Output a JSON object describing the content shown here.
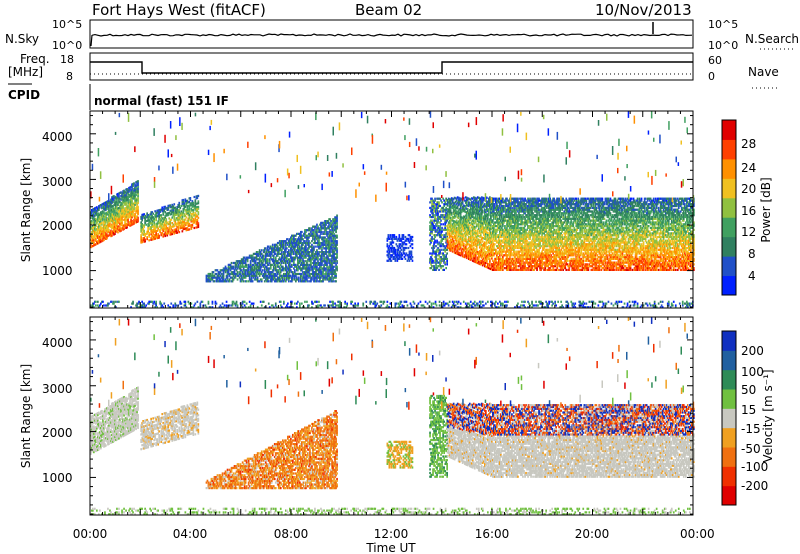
{
  "header": {
    "title": "Fort Hays West (fitACF)",
    "beam": "Beam 02",
    "date": "10/Nov/2013"
  },
  "params": {
    "nsky_label": "N.Sky",
    "nsearch_label": "N.Search",
    "nsky_ticks": [
      "10^5",
      "10^0"
    ],
    "nsearch_ticks": [
      "10^5",
      "10^0"
    ],
    "freq_label": "Freq.",
    "freq_unit": "[MHz]",
    "freq_ticks": [
      "18",
      "8"
    ],
    "nave_label": "Nave",
    "nave_ticks": [
      "60",
      "0"
    ],
    "cpid_label": "CPID",
    "cpid_text": "normal (fast) 151 IF"
  },
  "chart_data": [
    {
      "type": "heatmap",
      "name": "power",
      "ylabel": "Slant Range [km]",
      "yticks": [
        "4000",
        "3000",
        "2000",
        "1000"
      ],
      "ylim": [
        180,
        4500
      ],
      "colorbar_label": "Power [dB]",
      "colorbar_ticks": [
        "28",
        "24",
        "20",
        "16",
        "12",
        "8",
        "4"
      ],
      "colors": [
        "#0020ff",
        "#2050c8",
        "#308060",
        "#40a060",
        "#90c040",
        "#f0c020",
        "#ff9000",
        "#ff4000",
        "#e00000"
      ]
    },
    {
      "type": "heatmap",
      "name": "velocity",
      "ylabel": "Slant Range [km]",
      "yticks": [
        "4000",
        "3000",
        "2000",
        "1000"
      ],
      "ylim": [
        180,
        4500
      ],
      "colorbar_label": "Velocity [m s⁻¹]",
      "colorbar_ticks": [
        "200",
        "100",
        "50",
        "15",
        "-15",
        "-50",
        "-100",
        "-200"
      ],
      "colors": [
        "#1030c0",
        "#2060a0",
        "#2e8b57",
        "#70c040",
        "#c8c8c0",
        "#f0a020",
        "#f07010",
        "#f03000",
        "#e00000"
      ]
    }
  ],
  "xaxis": {
    "label": "Time UT",
    "ticks": [
      "00:00",
      "04:00",
      "08:00",
      "12:00",
      "16:00",
      "20:00",
      "00:00"
    ]
  }
}
